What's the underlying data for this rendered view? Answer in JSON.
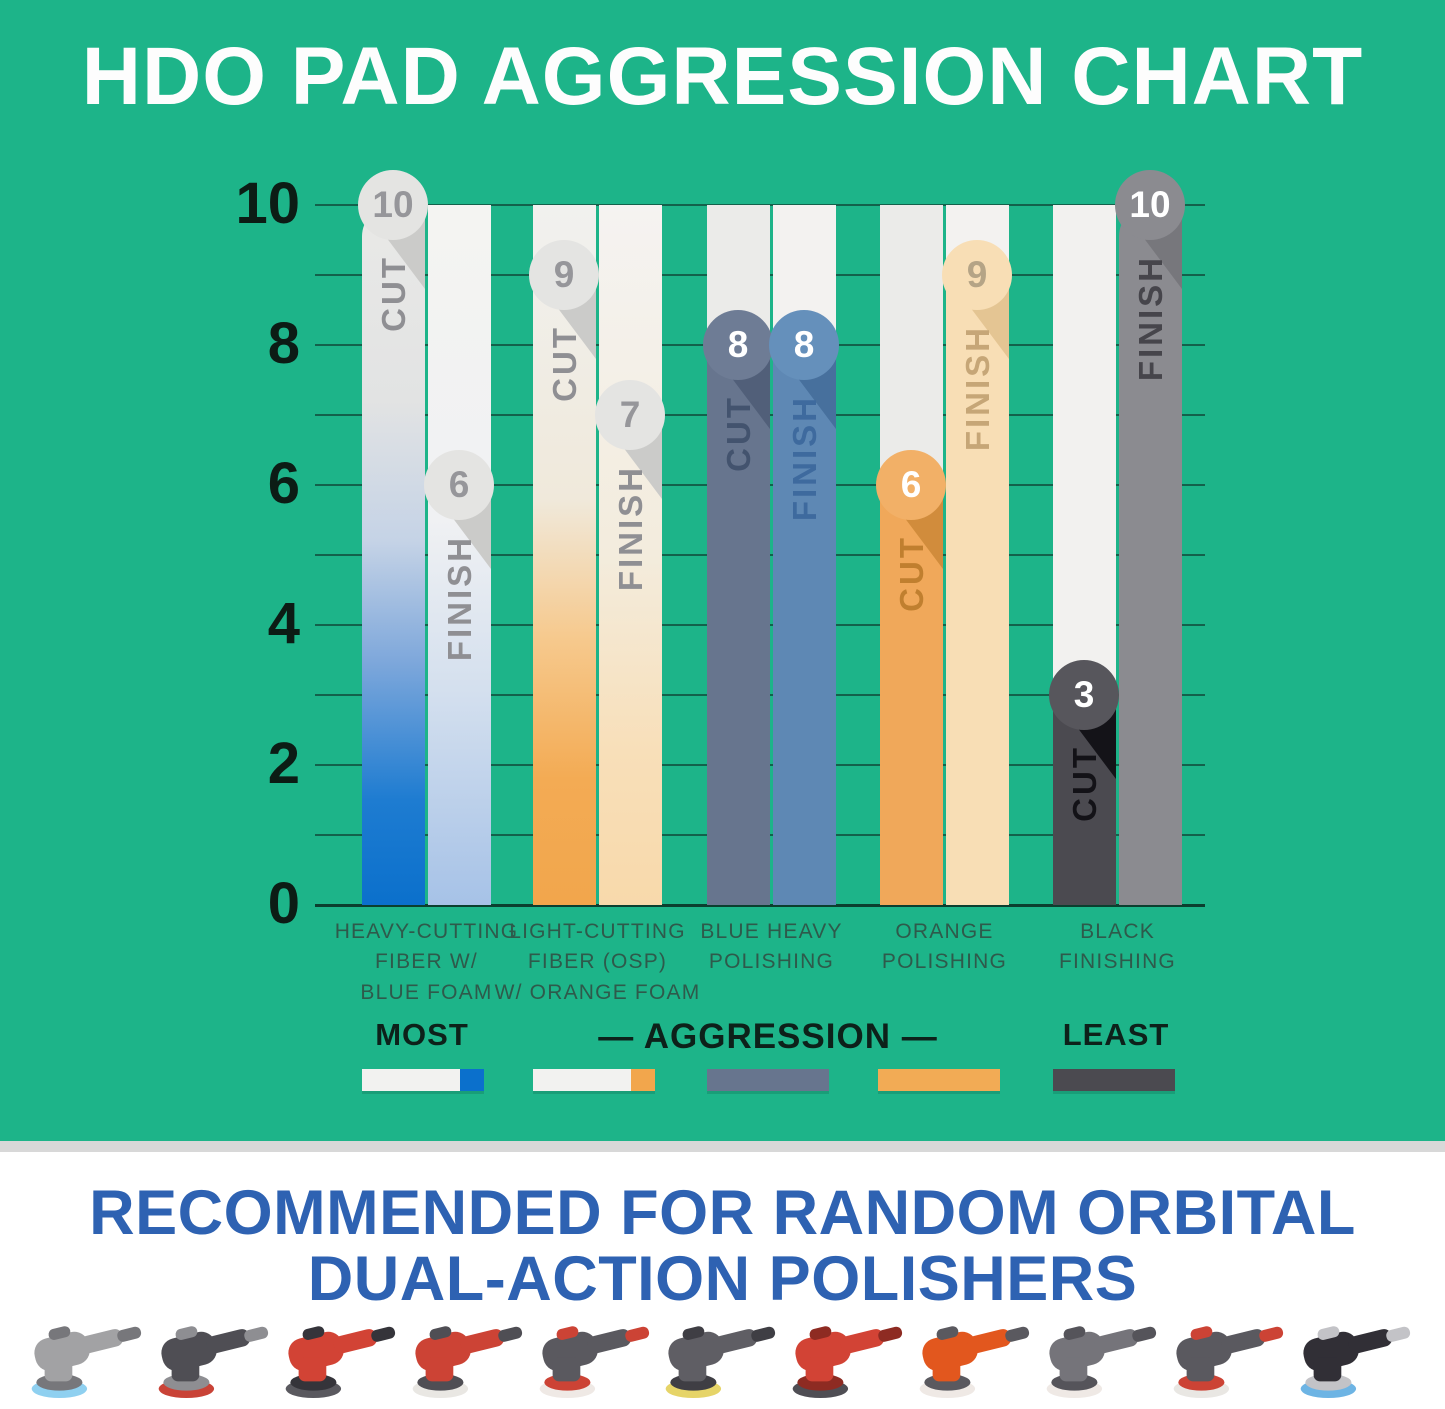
{
  "title": "HDO PAD AGGRESSION CHART",
  "colors": {
    "background_green": "#1db489",
    "gridline": "#104637",
    "axis_text": "#0c1c15",
    "category_text": "#2e5a4b",
    "divider_gray": "#d8d8d8",
    "heading_blue": "#2e62b2"
  },
  "chart_data": {
    "type": "bar",
    "title": "HDO PAD AGGRESSION CHART",
    "xlabel": "",
    "ylabel": "",
    "ylim": [
      0,
      10
    ],
    "yticks": [
      10,
      8,
      6,
      4,
      2,
      0
    ],
    "grid": "horizontal lines at every unit 0-10",
    "legend_position": "below chart (MOST - AGGRESSION - LEAST)",
    "categories": [
      "HEAVY-CUTTING FIBER W/ BLUE FOAM",
      "LIGHT-CUTTING FIBER (OSP) W/ ORANGE FOAM",
      "BLUE HEAVY POLISHING",
      "ORANGE POLISHING",
      "BLACK FINISHING"
    ],
    "series": [
      {
        "name": "CUT",
        "values": [
          10,
          9,
          8,
          6,
          3
        ]
      },
      {
        "name": "FINISH",
        "values": [
          6,
          7,
          8,
          9,
          10
        ]
      }
    ],
    "pads": [
      {
        "slug": "heavy-cutting-fiber-blue-foam",
        "label_lines": [
          "HEAVY-CUTTING",
          "FIBER W/",
          "BLUE FOAM"
        ],
        "cut": {
          "label": "CUT",
          "value": 10,
          "full_height": true,
          "rounded_top": true,
          "fill": "linear-gradient(180deg,#e9e9e7 0%,#e2e3e3 28%,#c5d3e6 48%,#7fa8db 65%,#1e7cd1 85%,#0b70cc 100%)",
          "track": null,
          "badge_bg": "#e4e4e2",
          "badge_fg": "#96969a",
          "shadow": "#cbcbc9",
          "label_color": "#8f8f93"
        },
        "finish": {
          "label": "FINISH",
          "value": 6,
          "full_height": true,
          "rounded_top": false,
          "fill": "linear-gradient(180deg,#f4f4f2 0%,#f0f1f3 45%,#d3dfee 70%,#a6c2e7 100%)",
          "track": null,
          "badge_bg": "#e4e4e2",
          "badge_fg": "#96969a",
          "shadow": "#cbcbc9",
          "label_color": "#8f8f93"
        }
      },
      {
        "slug": "light-cutting-fiber-osp-orange-foam",
        "label_lines": [
          "LIGHT-CUTTING",
          "FIBER (OSP)",
          "W/ ORANGE FOAM"
        ],
        "cut": {
          "label": "CUT",
          "value": 9,
          "full_height": true,
          "rounded_top": false,
          "fill": "linear-gradient(180deg,#f1f1ef 0%,#f0e9db 42%,#f6c98d 62%,#f3ab54 82%,#f2a64c 100%)",
          "track": null,
          "badge_bg": "#e4e4e2",
          "badge_fg": "#96969a",
          "shadow": "#cbcbc9",
          "label_color": "#8f8f93"
        },
        "finish": {
          "label": "FINISH",
          "value": 7,
          "full_height": true,
          "rounded_top": false,
          "fill": "linear-gradient(180deg,#f5f3f1 0%,#f3ecdd 50%,#f8dfb9 78%,#f8d9ab 100%)",
          "track": null,
          "badge_bg": "#e4e4e2",
          "badge_fg": "#96969a",
          "shadow": "#cbcbc9",
          "label_color": "#8f8f93"
        }
      },
      {
        "slug": "blue-heavy-polishing",
        "label_lines": [
          "BLUE HEAVY",
          "POLISHING"
        ],
        "cut": {
          "label": "CUT",
          "value": 8,
          "full_height": false,
          "rounded_top": false,
          "fill": "#67758e",
          "track": "#ebebe9",
          "badge_bg": "#6e7c95",
          "badge_fg": "#ffffff",
          "shadow": "#515f79",
          "label_color": "#43536e"
        },
        "finish": {
          "label": "FINISH",
          "value": 8,
          "full_height": false,
          "rounded_top": false,
          "fill": "#5e88b4",
          "track": "#f3f2f0",
          "badge_bg": "#6590bb",
          "badge_fg": "#ffffff",
          "shadow": "#47709d",
          "label_color": "#3e6a9e"
        }
      },
      {
        "slug": "orange-polishing",
        "label_lines": [
          "ORANGE",
          "POLISHING"
        ],
        "cut": {
          "label": "CUT",
          "value": 6,
          "full_height": false,
          "rounded_top": false,
          "fill": "#f0a85a",
          "track": "#ebebe9",
          "badge_bg": "#f2b067",
          "badge_fg": "#ffffff",
          "shadow": "#d18c3c",
          "label_color": "#c07f2f"
        },
        "finish": {
          "label": "FINISH",
          "value": 9,
          "full_height": false,
          "rounded_top": false,
          "fill": "#f8deb5",
          "track": "#f3f2f0",
          "badge_bg": "#f8deb5",
          "badge_fg": "#b5a486",
          "shadow": "#e4c593",
          "label_color": "#c6a677"
        }
      },
      {
        "slug": "black-finishing",
        "label_lines": [
          "BLACK",
          "FINISHING"
        ],
        "cut": {
          "label": "CUT",
          "value": 3,
          "full_height": false,
          "rounded_top": false,
          "fill": "#4b4a50",
          "track": "#f2f1ef",
          "badge_bg": "#57565c",
          "badge_fg": "#ffffff",
          "shadow": "#141318",
          "label_color": "#131217"
        },
        "finish": {
          "label": "FINISH",
          "value": 10,
          "full_height": false,
          "rounded_top": true,
          "fill": "#8b8b90",
          "track": null,
          "badge_bg": "#8b8b90",
          "badge_fg": "#ffffff",
          "shadow": "#77777c",
          "label_color": "#46454b"
        }
      }
    ]
  },
  "legend": {
    "most": "MOST",
    "aggression": "— AGGRESSION —",
    "least": "LEAST",
    "swatches": [
      {
        "name": "heavy-cutting-swatch",
        "type": "split",
        "base": "#f2f2f0",
        "end": "#0b70cc"
      },
      {
        "name": "light-cutting-swatch",
        "type": "split",
        "base": "#f2f2f0",
        "end": "#f2a64c"
      },
      {
        "name": "blue-heavy-swatch",
        "type": "solid",
        "base": "#67758e",
        "end": null
      },
      {
        "name": "orange-swatch",
        "type": "solid",
        "base": "#f2ab55",
        "end": null
      },
      {
        "name": "black-swatch",
        "type": "solid",
        "base": "#4b4a50",
        "end": null
      }
    ]
  },
  "footer": {
    "heading_line1": "RECOMMENDED FOR RANDOM ORBITAL",
    "heading_line2": "DUAL-ACTION POLISHERS",
    "polishers": [
      {
        "name": "gray-polisher-blue-pad",
        "body": "#a2a2a4",
        "pad": "#8fd0f0",
        "accent": "#77777b"
      },
      {
        "name": "black-polisher-red-backing",
        "body": "#4f4e54",
        "pad": "#c94337",
        "accent": "#8e8e92"
      },
      {
        "name": "red-polisher-dark-pad",
        "body": "#d24335",
        "pad": "#5a595f",
        "accent": "#35343a"
      },
      {
        "name": "red-rotary-polisher",
        "body": "#cc4335",
        "pad": "#e9e7e3",
        "accent": "#4f4e54"
      },
      {
        "name": "dark-red-polisher-white-pad",
        "body": "#5a595f",
        "pad": "#efe9e5",
        "accent": "#cc4335"
      },
      {
        "name": "gray-polisher-yellow-pad",
        "body": "#5f5e64",
        "pad": "#e6d468",
        "accent": "#3f3e44"
      },
      {
        "name": "red-black-polisher",
        "body": "#d24335",
        "pad": "#4f4e54",
        "accent": "#8e2b22"
      },
      {
        "name": "orange-sander",
        "body": "#e2571e",
        "pad": "#efe9e5",
        "accent": "#5a595f"
      },
      {
        "name": "gray-polisher-white-pad",
        "body": "#75747a",
        "pad": "#efe9e5",
        "accent": "#55545a"
      },
      {
        "name": "gray-slim-polisher",
        "body": "#5a595f",
        "pad": "#e9e7e3",
        "accent": "#cc4335"
      },
      {
        "name": "black-silver-polisher-blue-pad",
        "body": "#312f36",
        "pad": "#6db4e4",
        "accent": "#c3c3c7"
      }
    ]
  }
}
